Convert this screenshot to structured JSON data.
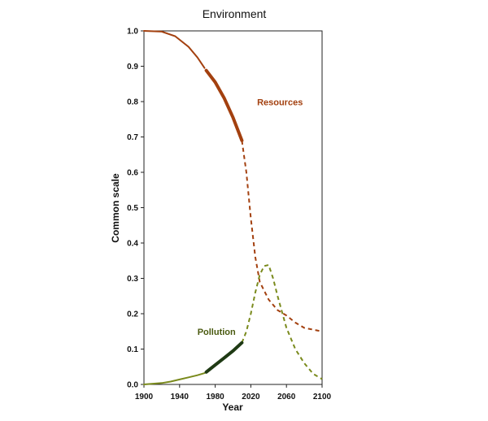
{
  "chart_data": {
    "type": "line",
    "title": "Environment",
    "xlabel": "Year",
    "ylabel": "Common scale",
    "xlim": [
      1900,
      2100
    ],
    "ylim": [
      0,
      1
    ],
    "x_ticks": [
      1900,
      1940,
      1980,
      2020,
      2060,
      2100
    ],
    "x_tick_labels": [
      "1900",
      "1940",
      "1980",
      "2020",
      "2060",
      "2100"
    ],
    "y_ticks": [
      0,
      0.1,
      0.2,
      0.3,
      0.4,
      0.5,
      0.6,
      0.7,
      0.8,
      0.9,
      1.0
    ],
    "y_tick_labels": [
      "0.0",
      "0.1",
      "0.2",
      "0.3",
      "0.4",
      "0.5",
      "0.6",
      "0.7",
      "0.8",
      "0.9",
      "1.0"
    ],
    "grid": false,
    "legend": "none",
    "series": [
      {
        "name": "Resources",
        "color": "#a3400f",
        "scenario_style": "solid",
        "scenario": [
          [
            1900,
            1.0
          ],
          [
            1920,
            0.998
          ],
          [
            1935,
            0.985
          ],
          [
            1950,
            0.955
          ],
          [
            1960,
            0.925
          ],
          [
            1968,
            0.895
          ]
        ],
        "observed_style": "thick",
        "observed": [
          [
            1970,
            0.888
          ],
          [
            1980,
            0.855
          ],
          [
            1990,
            0.81
          ],
          [
            2000,
            0.755
          ],
          [
            2010,
            0.69
          ]
        ],
        "projection_style": "dashed",
        "projection": [
          [
            2010,
            0.69
          ],
          [
            2015,
            0.6
          ],
          [
            2020,
            0.47
          ],
          [
            2025,
            0.36
          ],
          [
            2030,
            0.29
          ],
          [
            2040,
            0.24
          ],
          [
            2050,
            0.21
          ],
          [
            2060,
            0.195
          ],
          [
            2070,
            0.175
          ],
          [
            2080,
            0.16
          ],
          [
            2090,
            0.155
          ],
          [
            2100,
            0.15
          ]
        ]
      },
      {
        "name": "Pollution",
        "color": "#7a8a1c",
        "scenario_style": "solid",
        "scenario": [
          [
            1900,
            0.0
          ],
          [
            1920,
            0.004
          ],
          [
            1930,
            0.008
          ],
          [
            1940,
            0.014
          ],
          [
            1950,
            0.02
          ],
          [
            1960,
            0.026
          ],
          [
            1968,
            0.032
          ]
        ],
        "observed_style": "thick",
        "observed_color": "#1f3a14",
        "observed": [
          [
            1970,
            0.035
          ],
          [
            1980,
            0.055
          ],
          [
            1990,
            0.075
          ],
          [
            2000,
            0.095
          ],
          [
            2010,
            0.118
          ]
        ],
        "projection_style": "dashed",
        "projection": [
          [
            2010,
            0.118
          ],
          [
            2015,
            0.15
          ],
          [
            2020,
            0.2
          ],
          [
            2025,
            0.26
          ],
          [
            2030,
            0.31
          ],
          [
            2035,
            0.335
          ],
          [
            2040,
            0.338
          ],
          [
            2045,
            0.3
          ],
          [
            2050,
            0.25
          ],
          [
            2060,
            0.16
          ],
          [
            2070,
            0.1
          ],
          [
            2080,
            0.06
          ],
          [
            2090,
            0.03
          ],
          [
            2100,
            0.015
          ]
        ]
      }
    ],
    "annotations": [
      {
        "text": "Resources",
        "x": 2027,
        "y": 0.79,
        "color": "#a3400f"
      },
      {
        "text": "Pollution",
        "x": 1960,
        "y": 0.14,
        "color": "#4a5a10"
      }
    ]
  }
}
